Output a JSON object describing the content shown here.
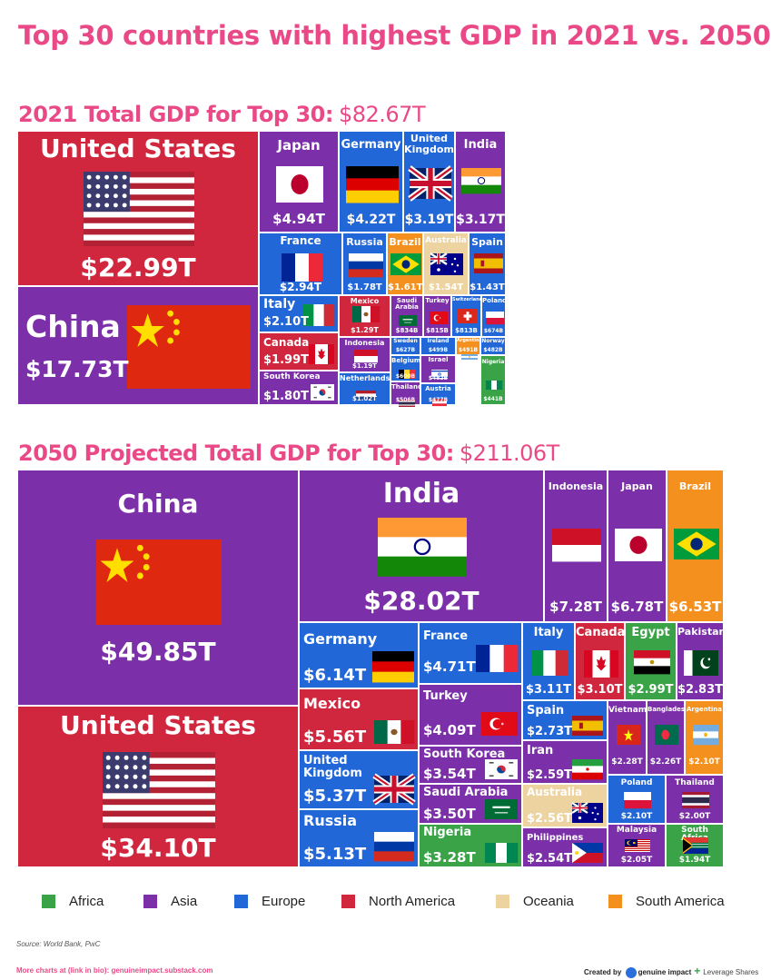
{
  "title": "Top 30 countries with highest GDP in 2021 vs. 2050",
  "colors": {
    "Africa": "#3aa348",
    "Asia": "#7b2fa8",
    "Europe": "#2267d8",
    "North America": "#d0273f",
    "Oceania": "#ecd3a0",
    "South America": "#f4901e"
  },
  "legend": [
    "Africa",
    "Asia",
    "Europe",
    "North America",
    "Oceania",
    "South America"
  ],
  "chart_data": [
    {
      "type": "treemap",
      "title": "2021 Total GDP for Top 30:",
      "total": "$82.67T",
      "items": [
        {
          "name": "United States",
          "value": "$22.99T",
          "region": "North America",
          "flag": "us"
        },
        {
          "name": "China",
          "value": "$17.73T",
          "region": "Asia",
          "flag": "cn"
        },
        {
          "name": "Japan",
          "value": "$4.94T",
          "region": "Asia",
          "flag": "jp"
        },
        {
          "name": "Germany",
          "value": "$4.22T",
          "region": "Europe",
          "flag": "de"
        },
        {
          "name": "United Kingdom",
          "value": "$3.19T",
          "region": "Europe",
          "flag": "gb"
        },
        {
          "name": "India",
          "value": "$3.17T",
          "region": "Asia",
          "flag": "in"
        },
        {
          "name": "France",
          "value": "$2.94T",
          "region": "Europe",
          "flag": "fr"
        },
        {
          "name": "Russia",
          "value": "$1.78T",
          "region": "Europe",
          "flag": "ru"
        },
        {
          "name": "Brazil",
          "value": "$1.61T",
          "region": "South America",
          "flag": "br"
        },
        {
          "name": "Australia",
          "value": "$1.54T",
          "region": "Oceania",
          "flag": "au"
        },
        {
          "name": "Spain",
          "value": "$1.43T",
          "region": "Europe",
          "flag": "es"
        },
        {
          "name": "Italy",
          "value": "$2.10T",
          "region": "Europe",
          "flag": "it"
        },
        {
          "name": "Mexico",
          "value": "$1.29T",
          "region": "North America",
          "flag": "mx"
        },
        {
          "name": "Saudi Arabia",
          "value": "$834B",
          "region": "Asia",
          "flag": "sa"
        },
        {
          "name": "Turkey",
          "value": "$815B",
          "region": "Asia",
          "flag": "tr"
        },
        {
          "name": "Switzerland",
          "value": "$813B",
          "region": "Europe",
          "flag": "ch"
        },
        {
          "name": "Poland",
          "value": "$674B",
          "region": "Europe",
          "flag": "pl"
        },
        {
          "name": "Canada",
          "value": "$1.99T",
          "region": "North America",
          "flag": "ca"
        },
        {
          "name": "Indonesia",
          "value": "$1.19T",
          "region": "Asia",
          "flag": "id"
        },
        {
          "name": "Sweden",
          "value": "$627B",
          "region": "Europe",
          "flag": "se"
        },
        {
          "name": "Ireland",
          "value": "$499B",
          "region": "Europe",
          "flag": "ie"
        },
        {
          "name": "Argentina",
          "value": "$491B",
          "region": "South America",
          "flag": "ar"
        },
        {
          "name": "Norway",
          "value": "$482B",
          "region": "Europe",
          "flag": "no"
        },
        {
          "name": "Belgium",
          "value": "$600B",
          "region": "Europe",
          "flag": "be"
        },
        {
          "name": "Israel",
          "value": "$482B",
          "region": "Asia",
          "flag": "il"
        },
        {
          "name": "Nigeria",
          "value": "$441B",
          "region": "Africa",
          "flag": "ng"
        },
        {
          "name": "South Korea",
          "value": "$1.80T",
          "region": "Asia",
          "flag": "kr"
        },
        {
          "name": "Netherlands",
          "value": "$1.02T",
          "region": "Europe",
          "flag": "nl"
        },
        {
          "name": "Thailand",
          "value": "$506B",
          "region": "Asia",
          "flag": "th"
        },
        {
          "name": "Austria",
          "value": "$477B",
          "region": "Europe",
          "flag": "at"
        }
      ]
    },
    {
      "type": "treemap",
      "title": "2050 Projected Total GDP for Top 30:",
      "total": "$211.06T",
      "items": [
        {
          "name": "China",
          "value": "$49.85T",
          "region": "Asia",
          "flag": "cn"
        },
        {
          "name": "United States",
          "value": "$34.10T",
          "region": "North America",
          "flag": "us"
        },
        {
          "name": "India",
          "value": "$28.02T",
          "region": "Asia",
          "flag": "in"
        },
        {
          "name": "Indonesia",
          "value": "$7.28T",
          "region": "Asia",
          "flag": "id"
        },
        {
          "name": "Japan",
          "value": "$6.78T",
          "region": "Asia",
          "flag": "jp"
        },
        {
          "name": "Brazil",
          "value": "$6.53T",
          "region": "South America",
          "flag": "br"
        },
        {
          "name": "Germany",
          "value": "$6.14T",
          "region": "Europe",
          "flag": "de"
        },
        {
          "name": "Mexico",
          "value": "$5.56T",
          "region": "North America",
          "flag": "mx"
        },
        {
          "name": "United Kingdom",
          "value": "$5.37T",
          "region": "Europe",
          "flag": "gb"
        },
        {
          "name": "Russia",
          "value": "$5.13T",
          "region": "Europe",
          "flag": "ru"
        },
        {
          "name": "France",
          "value": "$4.71T",
          "region": "Europe",
          "flag": "fr"
        },
        {
          "name": "Turkey",
          "value": "$4.09T",
          "region": "Asia",
          "flag": "tr"
        },
        {
          "name": "South Korea",
          "value": "$3.54T",
          "region": "Asia",
          "flag": "kr"
        },
        {
          "name": "Saudi Arabia",
          "value": "$3.50T",
          "region": "Asia",
          "flag": "sa"
        },
        {
          "name": "Nigeria",
          "value": "$3.28T",
          "region": "Africa",
          "flag": "ng"
        },
        {
          "name": "Italy",
          "value": "$3.11T",
          "region": "Europe",
          "flag": "it"
        },
        {
          "name": "Canada",
          "value": "$3.10T",
          "region": "North America",
          "flag": "ca"
        },
        {
          "name": "Egypt",
          "value": "$2.99T",
          "region": "Africa",
          "flag": "eg"
        },
        {
          "name": "Pakistan",
          "value": "$2.83T",
          "region": "Asia",
          "flag": "pk"
        },
        {
          "name": "Spain",
          "value": "$2.73T",
          "region": "Europe",
          "flag": "es"
        },
        {
          "name": "Iran",
          "value": "$2.59T",
          "region": "Asia",
          "flag": "ir"
        },
        {
          "name": "Australia",
          "value": "$2.56T",
          "region": "Oceania",
          "flag": "au"
        },
        {
          "name": "Philippines",
          "value": "$2.54T",
          "region": "Asia",
          "flag": "ph"
        },
        {
          "name": "Vietnam",
          "value": "$2.28T",
          "region": "Asia",
          "flag": "vn"
        },
        {
          "name": "Bangladesh",
          "value": "$2.26T",
          "region": "Asia",
          "flag": "bd"
        },
        {
          "name": "Argentina",
          "value": "$2.10T",
          "region": "South America",
          "flag": "ar"
        },
        {
          "name": "Poland",
          "value": "$2.10T",
          "region": "Europe",
          "flag": "pl"
        },
        {
          "name": "Thailand",
          "value": "$2.00T",
          "region": "Asia",
          "flag": "th"
        },
        {
          "name": "Malaysia",
          "value": "$2.05T",
          "region": "Asia",
          "flag": "my"
        },
        {
          "name": "South Africa",
          "value": "$1.94T",
          "region": "Africa",
          "flag": "za"
        }
      ]
    }
  ],
  "footer": {
    "source": "Source: World Bank, PwC",
    "more": "More charts at (link in bio): genuineimpact.substack.com",
    "created_by": "Created by",
    "brand1": "genuine impact",
    "brand2": "Leverage Shares"
  }
}
